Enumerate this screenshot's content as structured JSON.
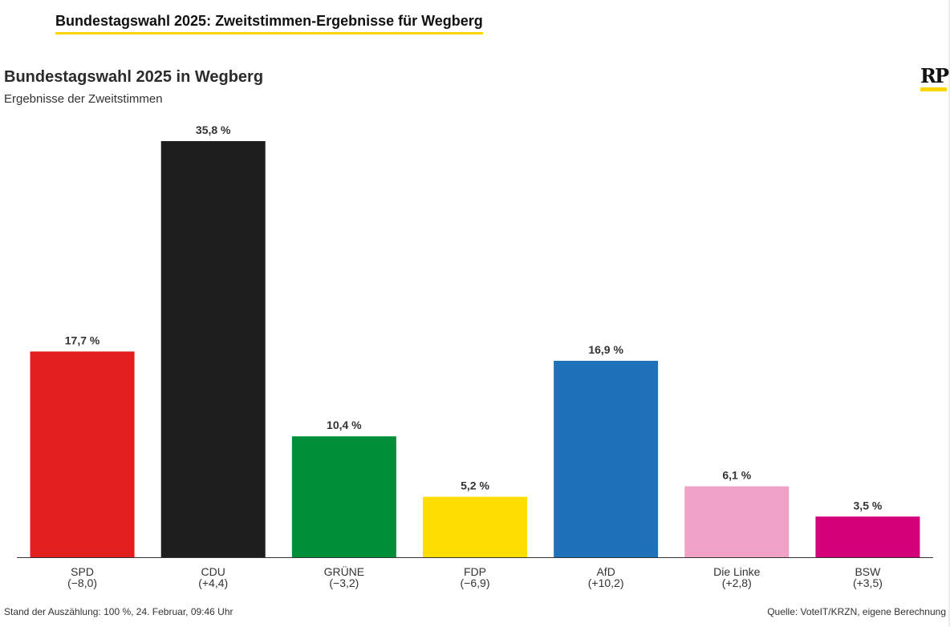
{
  "header": {
    "title": "Bundestagswahl 2025: Zweitstimmen-Ergebnisse für Wegberg"
  },
  "logo": {
    "text": "RP",
    "accent": "#ffd500"
  },
  "chart_data": {
    "type": "bar",
    "title": "Bundestagswahl 2025 in Wegberg",
    "subtitle": "Ergebnisse der Zweitstimmen",
    "categories": [
      "SPD",
      "CDU",
      "GRÜNE",
      "FDP",
      "AfD",
      "Die Linke",
      "BSW"
    ],
    "changes": [
      "(−8,0)",
      "(+4,4)",
      "(−3,2)",
      "(−6,9)",
      "(+10,2)",
      "(+2,8)",
      "(+3,5)"
    ],
    "values": [
      17.7,
      35.8,
      10.4,
      5.2,
      16.9,
      6.1,
      3.5
    ],
    "value_labels": [
      "17,7 %",
      "35,8 %",
      "10,4 %",
      "5,2 %",
      "16,9 %",
      "6,1 %",
      "3,5 %"
    ],
    "colors": [
      "#e31e1e",
      "#1e1e1e",
      "#008f38",
      "#ffdd00",
      "#1f72ba",
      "#f0a2c7",
      "#d4007a"
    ],
    "unit": "%",
    "ylim": [
      0,
      35.8
    ],
    "grid": false,
    "legend": "none"
  },
  "footer": {
    "status": "Stand der Auszählung: 100 %, 24. Februar, 09:46 Uhr",
    "source": "Quelle: VoteIT/KRZN, eigene Berechnung"
  }
}
